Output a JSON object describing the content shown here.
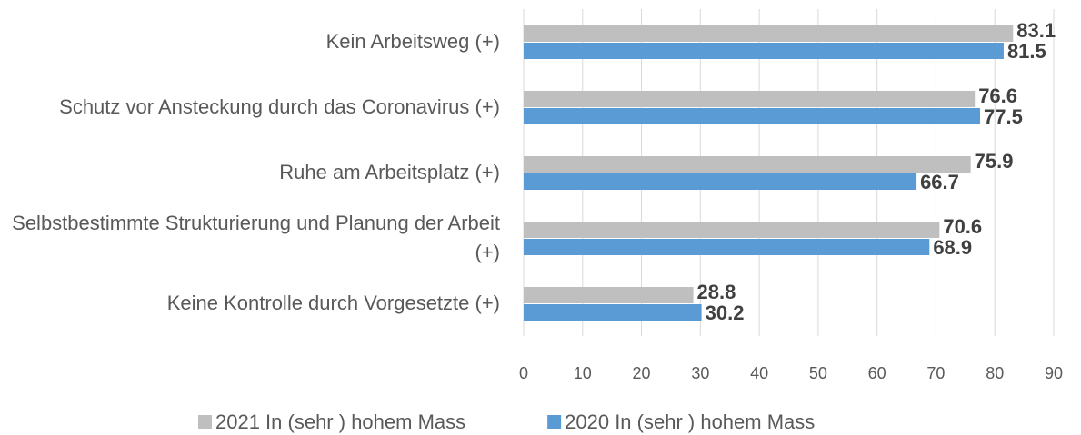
{
  "chart_data": {
    "type": "bar",
    "orientation": "horizontal",
    "categories": [
      "Kein Arbeitsweg (+)",
      "Schutz vor Ansteckung durch das Coronavirus (+)",
      "Ruhe am Arbeitsplatz (+)",
      "Selbstbestimmte Strukturierung und Planung der Arbeit (+)",
      "Keine Kontrolle durch Vorgesetzte (+)"
    ],
    "series": [
      {
        "name": "2021 In (sehr ) hohem Mass",
        "color": "#bfbfbf",
        "values": [
          83.1,
          76.6,
          75.9,
          70.6,
          28.8
        ]
      },
      {
        "name": "2020 In (sehr ) hohem Mass",
        "color": "#5b9bd5",
        "values": [
          81.5,
          77.5,
          66.7,
          68.9,
          30.2
        ]
      }
    ],
    "xlim": [
      0,
      90
    ],
    "xticks": [
      0,
      10,
      20,
      30,
      40,
      50,
      60,
      70,
      80,
      90
    ],
    "grid": true,
    "legend": "bottom"
  }
}
